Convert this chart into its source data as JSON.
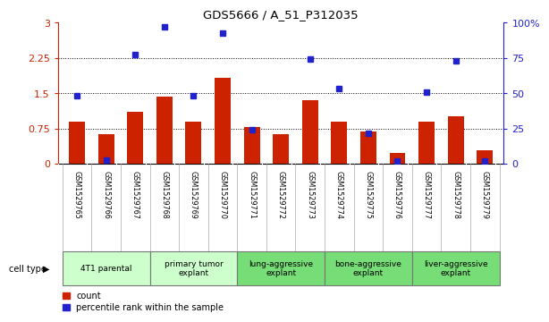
{
  "title": "GDS5666 / A_51_P312035",
  "samples": [
    "GSM1529765",
    "GSM1529766",
    "GSM1529767",
    "GSM1529768",
    "GSM1529769",
    "GSM1529770",
    "GSM1529771",
    "GSM1529772",
    "GSM1529773",
    "GSM1529774",
    "GSM1529775",
    "GSM1529776",
    "GSM1529777",
    "GSM1529778",
    "GSM1529779"
  ],
  "bar_values": [
    0.9,
    0.62,
    1.1,
    1.42,
    0.9,
    1.82,
    0.77,
    0.62,
    1.35,
    0.9,
    0.68,
    0.22,
    0.9,
    1.0,
    0.28
  ],
  "percentile_values": [
    1.45,
    0.08,
    2.32,
    2.9,
    1.45,
    2.78,
    0.72,
    null,
    2.22,
    1.6,
    0.65,
    0.06,
    1.52,
    2.18,
    0.06
  ],
  "bar_color": "#cc2200",
  "dot_color": "#2222cc",
  "ylim_left": [
    0,
    3
  ],
  "ylim_right": [
    0,
    100
  ],
  "yticks_left": [
    0,
    0.75,
    1.5,
    2.25,
    3
  ],
  "ytick_labels_left": [
    "0",
    "0.75",
    "1.5",
    "2.25",
    "3"
  ],
  "yticks_right": [
    0,
    25,
    50,
    75,
    100
  ],
  "ytick_labels_right": [
    "0",
    "25",
    "50",
    "75",
    "100%"
  ],
  "cell_type_groups": [
    {
      "label": "4T1 parental",
      "start": 0,
      "end": 2,
      "color": "#ccffcc"
    },
    {
      "label": "primary tumor\nexplant",
      "start": 3,
      "end": 5,
      "color": "#ccffcc"
    },
    {
      "label": "lung-aggressive\nexplant",
      "start": 6,
      "end": 8,
      "color": "#77dd77"
    },
    {
      "label": "bone-aggressive\nexplant",
      "start": 9,
      "end": 11,
      "color": "#77dd77"
    },
    {
      "label": "liver-aggressive\nexplant",
      "start": 12,
      "end": 14,
      "color": "#77dd77"
    }
  ],
  "cell_type_label": "cell type",
  "legend_count_label": "count",
  "legend_percentile_label": "percentile rank within the sample",
  "bg_color": "#ffffff",
  "plot_bg_color": "#ffffff",
  "tick_label_color_left": "#cc2200",
  "tick_label_color_right": "#2222cc",
  "grid_color": "#000000",
  "bar_width": 0.55,
  "sample_bg_color": "#cccccc",
  "spine_color": "#000000"
}
